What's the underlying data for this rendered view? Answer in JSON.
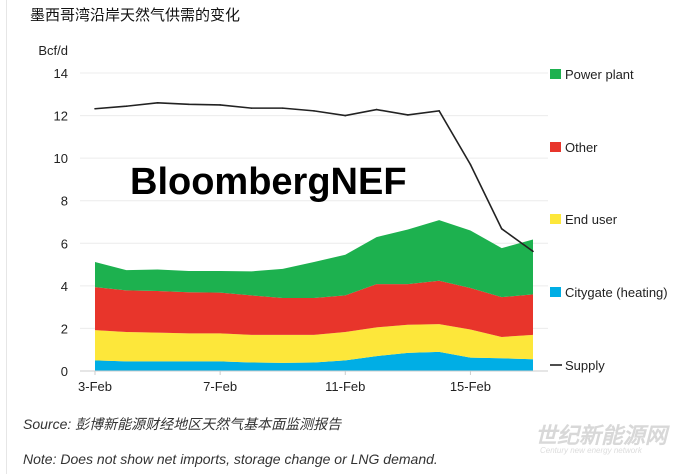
{
  "title": "墨西哥湾沿岸天然气供需的变化",
  "source": "Source: 彭博新能源财经地区天然气基本面监测报告",
  "note": "Note: Does not show net imports, storage change or LNG demand.",
  "logo_text": "BloombergNEF",
  "watermark": {
    "cn": "世纪新能源网",
    "en": "Century new energy network"
  },
  "chart_data": {
    "type": "area",
    "stacked": true,
    "ylabel": "Bcf/d",
    "ylim": [
      0,
      14
    ],
    "yticks": [
      "0",
      "2",
      "4",
      "6",
      "8",
      "10",
      "12",
      "14"
    ],
    "x": [
      "3-Feb",
      "4-Feb",
      "5-Feb",
      "6-Feb",
      "7-Feb",
      "8-Feb",
      "9-Feb",
      "10-Feb",
      "11-Feb",
      "12-Feb",
      "13-Feb",
      "14-Feb",
      "15-Feb",
      "16-Feb",
      "17-Feb"
    ],
    "xticks": [
      "3-Feb",
      "7-Feb",
      "11-Feb",
      "15-Feb"
    ],
    "grid": true,
    "legend_position": "right",
    "series": [
      {
        "name": "Citygate (heating)",
        "color": "#00aee5",
        "values": [
          0.5,
          0.45,
          0.45,
          0.45,
          0.45,
          0.4,
          0.38,
          0.4,
          0.5,
          0.7,
          0.85,
          0.9,
          0.63,
          0.6,
          0.55
        ]
      },
      {
        "name": "End user",
        "color": "#fde73a",
        "values": [
          1.42,
          1.38,
          1.35,
          1.32,
          1.32,
          1.3,
          1.32,
          1.3,
          1.33,
          1.35,
          1.32,
          1.3,
          1.32,
          1.0,
          1.15
        ]
      },
      {
        "name": "Other",
        "color": "#e8352b",
        "values": [
          2.02,
          1.96,
          1.96,
          1.93,
          1.91,
          1.85,
          1.73,
          1.73,
          1.72,
          2.03,
          1.91,
          2.04,
          1.95,
          1.87,
          1.9
        ]
      },
      {
        "name": "Power plant",
        "color": "#1db14f",
        "values": [
          1.18,
          0.95,
          1.01,
          1.0,
          1.02,
          1.13,
          1.37,
          1.69,
          1.91,
          2.21,
          2.57,
          2.85,
          2.7,
          2.3,
          2.58
        ]
      }
    ],
    "line": {
      "name": "Supply",
      "color": "#222222",
      "values": [
        12.32,
        12.44,
        12.6,
        12.53,
        12.5,
        12.35,
        12.35,
        12.22,
        12.0,
        12.28,
        12.03,
        12.22,
        9.7,
        6.68,
        5.62
      ]
    }
  }
}
